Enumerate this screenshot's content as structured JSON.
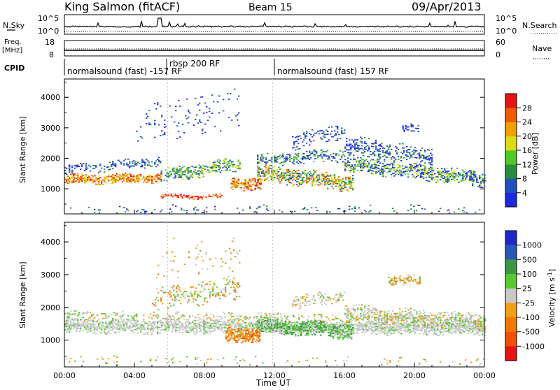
{
  "header": {
    "station": "King Salmon (fitACF)",
    "beam": "Beam 15",
    "date": "09/Apr/2013"
  },
  "top_panels": {
    "nsky": {
      "label": "N.Sky",
      "tick_top": "10^5",
      "tick_bottom": "10^0",
      "right_tick_top": "10^5",
      "right_tick_bottom": "10^0",
      "right_label": "N.Search"
    },
    "freq": {
      "label_line1": "Freq.",
      "label_line2": "[MHz]",
      "tick_top": "18",
      "tick_bottom": "8",
      "right_tick_top": "60",
      "right_tick_bottom": "0",
      "right_label": "Nave"
    },
    "cpid": {
      "label": "CPID",
      "segments": [
        {
          "name": "normalsound (fast) -157 RF"
        },
        {
          "name": "rbsp 200 RF"
        },
        {
          "name": "normalsound (fast) 157 RF"
        }
      ]
    }
  },
  "axes": {
    "xlabel": "Time UT",
    "xticks": [
      "00:00",
      "04:00",
      "08:00",
      "12:00",
      "16:00",
      "20:00",
      "00:00"
    ],
    "ylabel": "Slant Range [km]",
    "yticks": [
      "1000",
      "2000",
      "3000",
      "4000"
    ]
  },
  "colorbars": {
    "power": {
      "label": "Power [dB]",
      "ticks": [
        "4",
        "8",
        "12",
        "16",
        "20",
        "24",
        "28"
      ],
      "colors": [
        "#1e28dc",
        "#1e50be",
        "#288c3c",
        "#50c828",
        "#dcdc14",
        "#f0a000",
        "#f05a00",
        "#e61414"
      ]
    },
    "velocity": {
      "label": "Velocity [m s",
      "label_sup": "-1",
      "label_close": "]",
      "ticks": [
        "1000",
        "500",
        "100",
        "25",
        "-25",
        "-100",
        "-500",
        "-1000"
      ],
      "colors": [
        "#1e28c8",
        "#2858b4",
        "#3c9646",
        "#58c832",
        "#c8c8c8",
        "#f0a014",
        "#f07800",
        "#f05000",
        "#e61414"
      ]
    }
  },
  "chart_data": [
    {
      "type": "heatmap",
      "title": "",
      "xlabel": "",
      "ylabel": "Slant Range [km]",
      "x_range": [
        "00:00",
        "24:00"
      ],
      "ylim": [
        180,
        4600
      ],
      "colorbar": "Power [dB]",
      "bands": [
        {
          "t_start": 0,
          "t_end": 5,
          "range": [
            1050,
            1500
          ],
          "power": "16-28",
          "note": "main echo band"
        },
        {
          "t_start": 5,
          "t_end": 10,
          "range": [
            1200,
            1900
          ],
          "power": "12-20"
        },
        {
          "t_start": 9.5,
          "t_end": 11,
          "range": [
            900,
            1400
          ],
          "power": "24-28"
        },
        {
          "t_start": 11,
          "t_end": 16,
          "range": [
            1000,
            2100
          ],
          "power": "8-24"
        },
        {
          "t_start": 13,
          "t_end": 16,
          "range": [
            2000,
            3100
          ],
          "power": "4-12"
        },
        {
          "t_start": 16,
          "t_end": 24,
          "range": [
            1100,
            2500
          ],
          "power": "8-20"
        },
        {
          "t_start": 5.5,
          "t_end": 9,
          "range": [
            600,
            800
          ],
          "power": "20-28"
        }
      ]
    },
    {
      "type": "heatmap",
      "title": "",
      "xlabel": "Time UT",
      "ylabel": "Slant Range [km]",
      "x_range": [
        "00:00",
        "24:00"
      ],
      "ylim": [
        180,
        4600
      ],
      "colorbar": "Velocity [m s-1]",
      "bands": [
        {
          "t_start": 0,
          "t_end": 24,
          "range": [
            1100,
            1700
          ],
          "velocity": "-25 to 25"
        },
        {
          "t_start": 10,
          "t_end": 11,
          "range": [
            900,
            1500
          ],
          "velocity": "-100 to -500"
        },
        {
          "t_start": 11,
          "t_end": 16,
          "range": [
            1100,
            1900
          ],
          "velocity": "100 to 500"
        },
        {
          "t_start": 18,
          "t_end": 20,
          "range": [
            2600,
            3000
          ],
          "velocity": "-100 to -500"
        }
      ]
    }
  ]
}
